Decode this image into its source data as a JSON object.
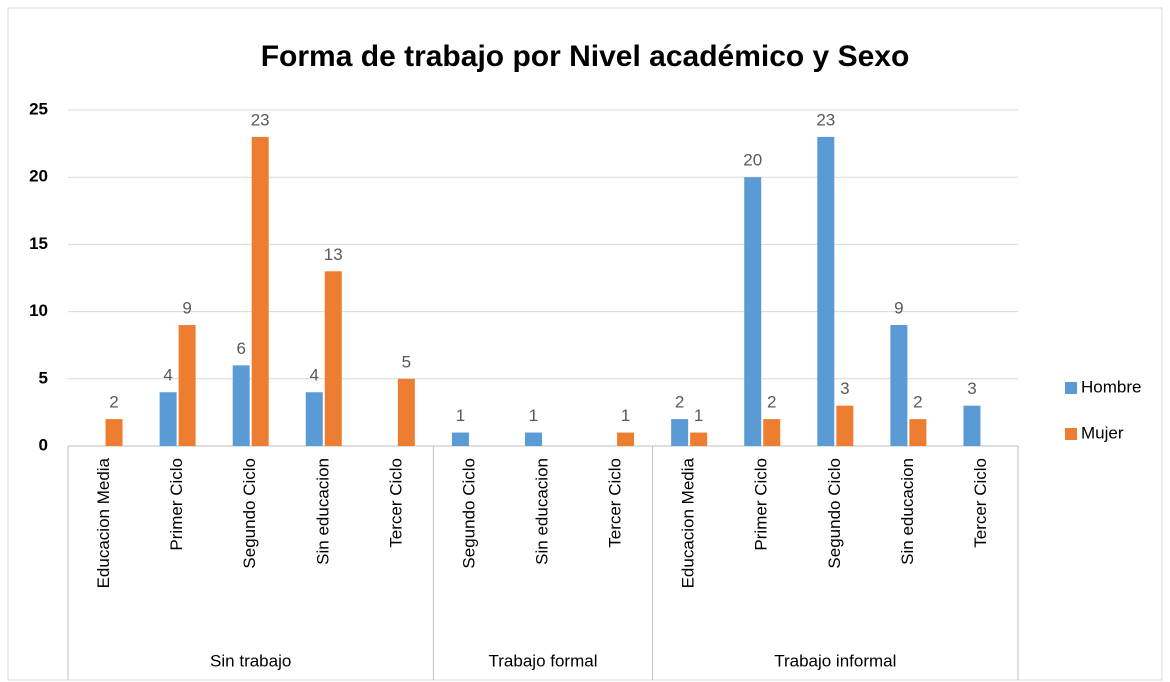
{
  "chart_data": {
    "type": "bar",
    "title": "Forma de trabajo por Nivel académico y Sexo",
    "groups": [
      {
        "name": "Sin trabajo",
        "categories": [
          "Educacion Media",
          "Primer Ciclo",
          "Segundo Ciclo",
          "Sin educacion",
          "Tercer Ciclo"
        ]
      },
      {
        "name": "Trabajo formal",
        "categories": [
          "Segundo Ciclo",
          "Sin educacion",
          "Tercer Ciclo"
        ]
      },
      {
        "name": "Trabajo informal",
        "categories": [
          "Educacion Media",
          "Primer Ciclo",
          "Segundo Ciclo",
          "Sin educacion",
          "Tercer Ciclo"
        ]
      }
    ],
    "series": [
      {
        "name": "Hombre",
        "color": "#5b9bd5",
        "values": [
          null,
          4,
          6,
          4,
          null,
          1,
          1,
          null,
          2,
          20,
          23,
          9,
          3
        ]
      },
      {
        "name": "Mujer",
        "color": "#ed7d31",
        "values": [
          2,
          9,
          23,
          13,
          5,
          null,
          null,
          1,
          1,
          2,
          3,
          2,
          null
        ]
      }
    ],
    "ylim": [
      0,
      25
    ],
    "yticks": [
      0,
      5,
      10,
      15,
      20,
      25
    ],
    "grid": true,
    "legend": "right"
  }
}
